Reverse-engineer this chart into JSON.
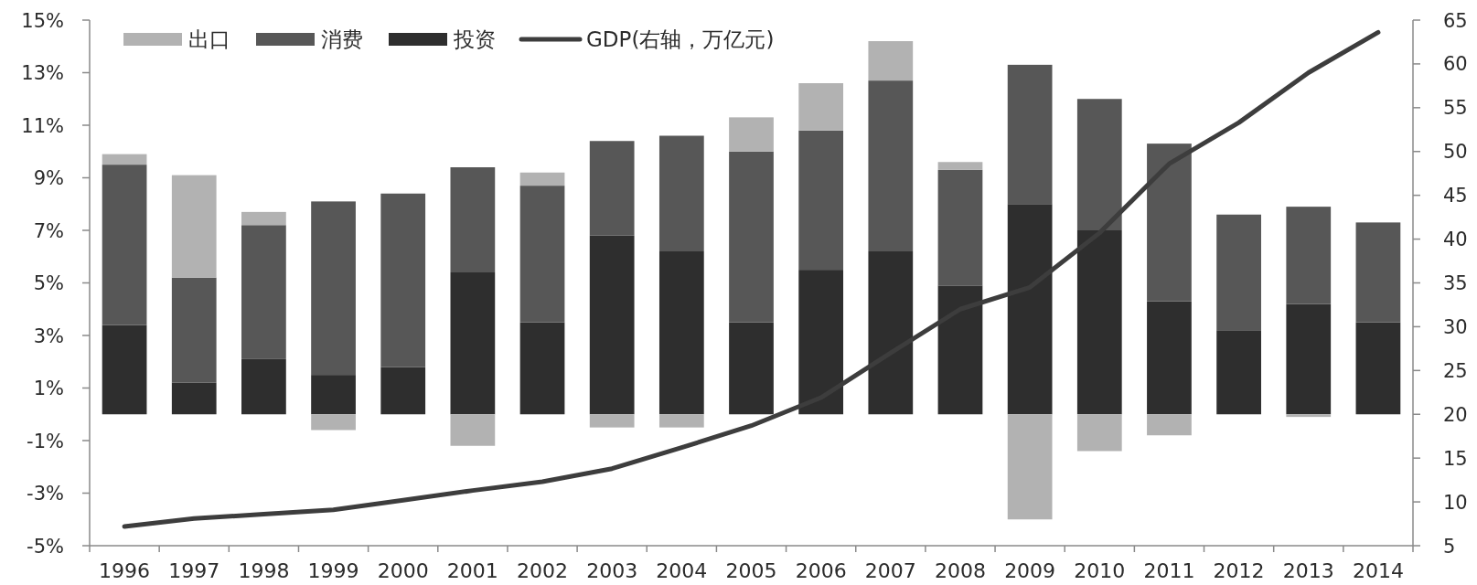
{
  "chart_data": {
    "type": "bar",
    "stacked": true,
    "legend": "top left",
    "categories": [
      "1996",
      "1997",
      "1998",
      "1999",
      "2000",
      "2001",
      "2002",
      "2003",
      "2004",
      "2005",
      "2006",
      "2007",
      "2008",
      "2009",
      "2010",
      "2011",
      "2012",
      "2013",
      "2014"
    ],
    "series": [
      {
        "name": "投资",
        "color": "#2e2e2e",
        "values": [
          3.4,
          1.2,
          2.1,
          1.5,
          1.8,
          5.4,
          3.5,
          6.8,
          6.2,
          3.5,
          5.5,
          6.2,
          4.9,
          8.0,
          7.0,
          4.3,
          3.2,
          4.2,
          3.5
        ]
      },
      {
        "name": "消费",
        "color": "#575757",
        "values": [
          6.1,
          4.0,
          5.1,
          6.6,
          6.6,
          4.0,
          5.2,
          3.6,
          4.4,
          6.5,
          5.3,
          6.5,
          4.4,
          5.3,
          5.0,
          6.0,
          4.4,
          3.7,
          3.8
        ]
      },
      {
        "name": "出口",
        "color": "#b2b2b2",
        "values": [
          0.4,
          3.9,
          0.5,
          -0.6,
          null,
          -1.2,
          0.5,
          -0.5,
          -0.5,
          1.3,
          1.8,
          1.5,
          0.3,
          -4.0,
          -1.4,
          -0.8,
          null,
          -0.1,
          null
        ]
      },
      {
        "name": "GDP(右轴，万亿元)",
        "type": "line",
        "axis": "y2",
        "color": "#3d3d3d",
        "values": [
          7.2,
          8.1,
          8.6,
          9.1,
          10.2,
          11.3,
          12.3,
          13.8,
          16.2,
          18.7,
          21.9,
          27.0,
          32.0,
          34.5,
          40.7,
          48.6,
          53.3,
          59.0,
          63.6
        ]
      }
    ],
    "ylim": [
      -5,
      15
    ],
    "yticks": [
      {
        "value": -5,
        "label": "-5%"
      },
      {
        "value": -3,
        "label": "-3%"
      },
      {
        "value": -1,
        "label": "-1%"
      },
      {
        "value": 1,
        "label": "1%"
      },
      {
        "value": 3,
        "label": "3%"
      },
      {
        "value": 5,
        "label": "5%"
      },
      {
        "value": 7,
        "label": "7%"
      },
      {
        "value": 9,
        "label": "9%"
      },
      {
        "value": 11,
        "label": "11%"
      },
      {
        "value": 13,
        "label": "13%"
      },
      {
        "value": 15,
        "label": "15%"
      }
    ],
    "y2lim": [
      5,
      65
    ],
    "y2ticks": [
      5,
      10,
      15,
      20,
      25,
      30,
      35,
      40,
      45,
      50,
      55,
      60,
      65
    ]
  }
}
